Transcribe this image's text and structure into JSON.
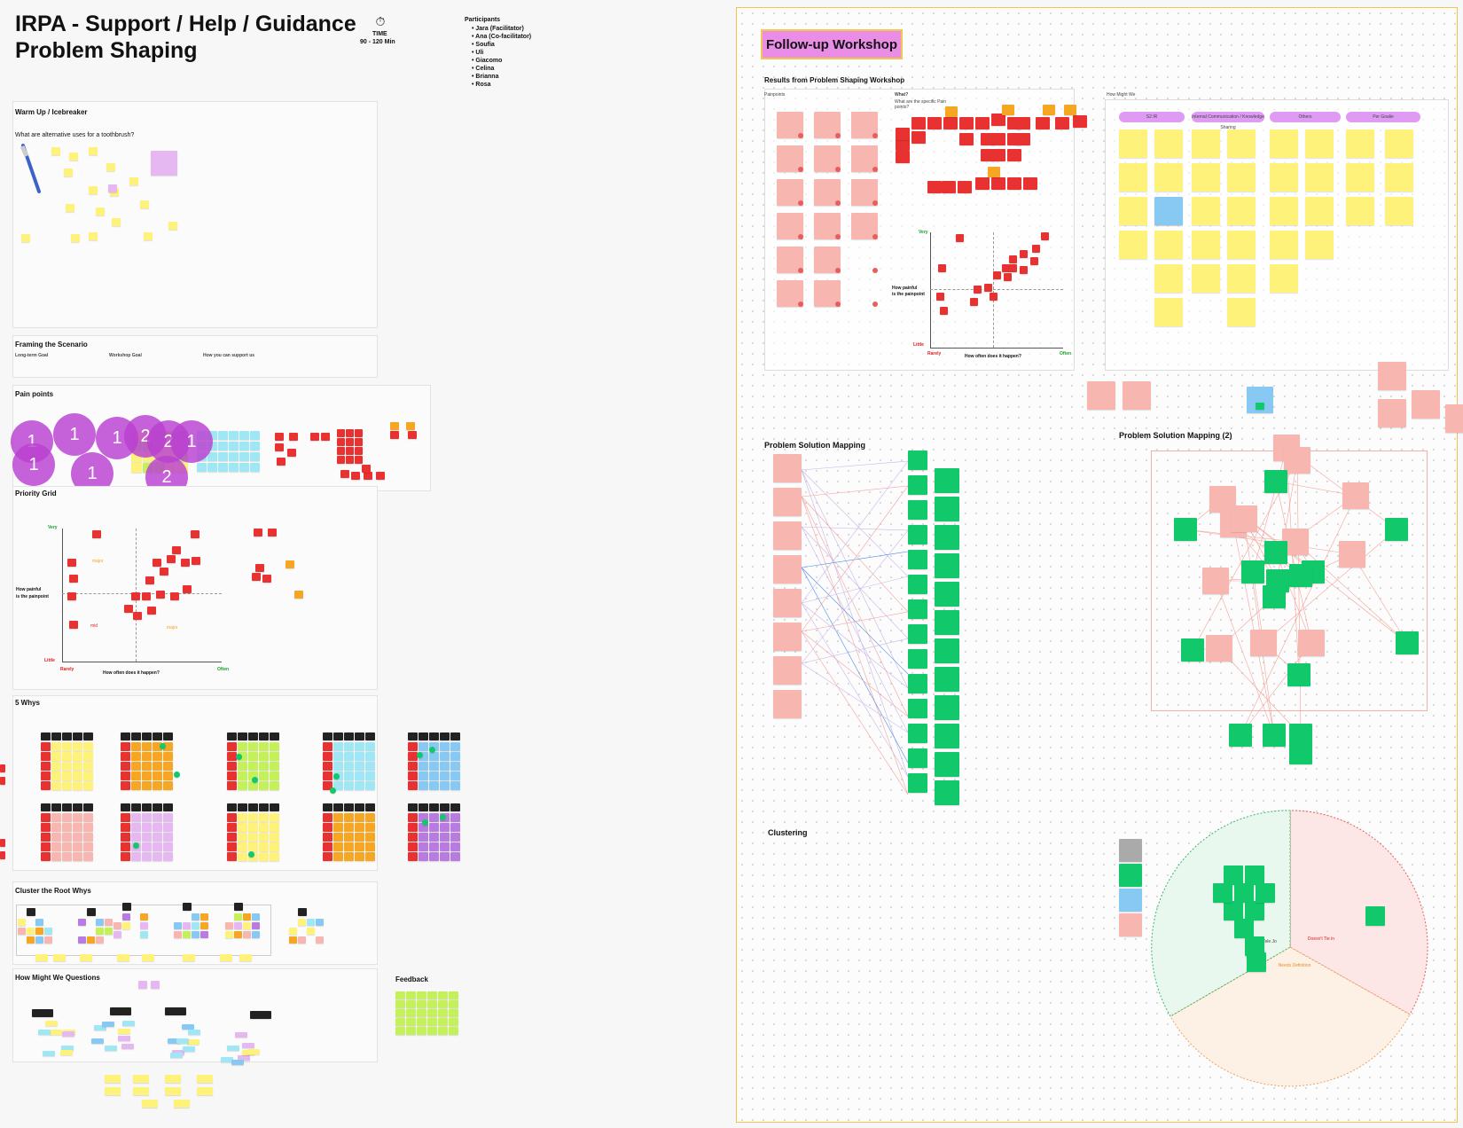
{
  "header": {
    "title_line1": "IRPA - Support / Help / Guidance",
    "title_line2": "Problem Shaping",
    "time_label": "TIME",
    "time_value": "90 - 120 Min",
    "participants_label": "Participants",
    "participants": [
      "Jara (Facilitator)",
      "Ana (Co-facilitator)",
      "Soufia",
      "Uli",
      "Giacomo",
      "Celina",
      "Brianna",
      "Rosa"
    ]
  },
  "left_sections": {
    "warmup_title": "Warm Up / Icebreaker",
    "warmup_question": "What are alternative uses for a toothbrush?",
    "framing_title": "Framing the Scenario",
    "framing_cols": [
      "Long-term Goal",
      "Workshop Goal",
      "How you can support us"
    ],
    "painpoints_title": "Pain points",
    "priority_title": "Priority Grid",
    "fivewhys_title": "5 Whys",
    "cluster_title": "Cluster the Root Whys",
    "hmw_title": "How Might We Questions",
    "feedback_title": "Feedback"
  },
  "priority_grid_left": {
    "very": "Very",
    "ylabel_1": "How painful",
    "ylabel_2": "is the painpoint",
    "little": "Little",
    "rarely": "Rarely",
    "xlabel": "How often does it happen?",
    "often": "Often",
    "zone_1": "major",
    "zone_2": "mid",
    "zone_3": "major"
  },
  "vote_bubbles": [
    "1",
    "1",
    "1",
    "2",
    "2",
    "1",
    "1",
    "1",
    "2"
  ],
  "right": {
    "workshop_tag": "Follow-up Workshop",
    "results_title": "Results from Problem Shaping Workshop",
    "painpoints_label": "Painpoints",
    "what_label": "What?",
    "what_sub": "What are the specific Pain points?",
    "hmw_label": "How Might We",
    "hmw_columns": [
      "S2 IR",
      "Internal Communication / Knowledge Sharing",
      "Others",
      "Per Goalie"
    ],
    "grid_very": "Very",
    "grid_ylabel_1": "How painful",
    "grid_ylabel_2": "is the painpoint",
    "grid_little": "Little",
    "grid_rarely": "Rarely",
    "grid_xlabel": "How often does it happen?",
    "grid_often": "Often",
    "psm_title": "Problem Solution Mapping",
    "psm2_title": "Problem Solution Mapping (2)",
    "clustering_title": "Clustering",
    "pie_labels": [
      "Tele Jo",
      "Doesn't Tie in",
      "Needs Definition"
    ]
  },
  "colors": {
    "accent_tag": "#ea8de6",
    "frame_border": "#f2c44a",
    "sticky_green": "#11c96b",
    "sticky_red": "#e83232"
  }
}
